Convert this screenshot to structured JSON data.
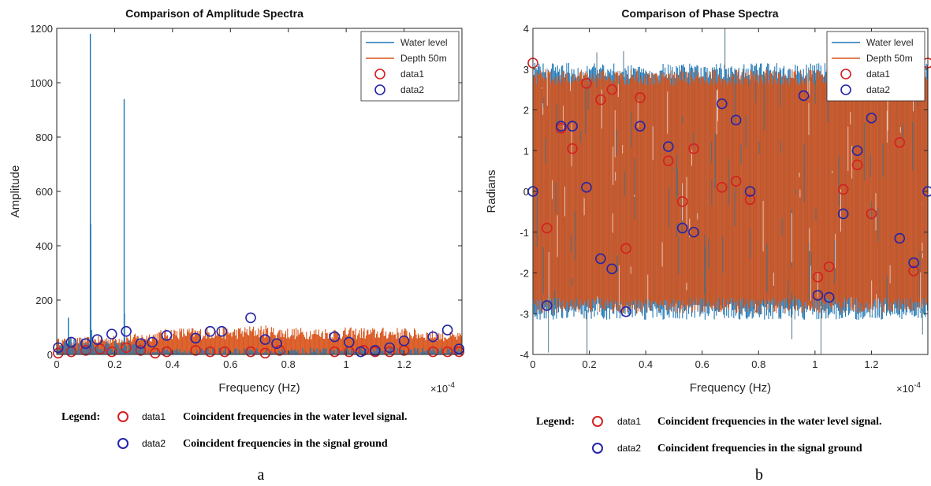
{
  "colors": {
    "water": "#1f77b4",
    "depth": "#d95319",
    "data1": "#d42020",
    "data2": "#2424a8"
  },
  "panel_a": {
    "caption": "a",
    "legend_caption": "Legend:",
    "legend_data1_name": "data1",
    "legend_data1_desc": "Coincident frequencies in the water level signal.",
    "legend_data2_name": "data2",
    "legend_data2_desc": "Coincident frequencies in the signal ground"
  },
  "panel_b": {
    "caption": "b",
    "legend_caption": "Legend:",
    "legend_data1_name": "data1",
    "legend_data1_desc": "Coincident frequencies in the water level signal.",
    "legend_data2_name": "data2",
    "legend_data2_desc": "Coincident frequencies in the signal ground"
  },
  "chart_data": [
    {
      "type": "line",
      "title": "Comparison of Amplitude Spectra",
      "xlabel": "Frequency (Hz)",
      "ylabel": "Amplitude",
      "x_multiplier": "×10-4",
      "xlim": [
        0,
        1.4
      ],
      "ylim": [
        0,
        1200
      ],
      "xticks": [
        0,
        0.2,
        0.4,
        0.6,
        0.8,
        1,
        1.2
      ],
      "xtick_labels": [
        "0",
        "0.2",
        "0.4",
        "0.6",
        "0.8",
        "1",
        "1.2"
      ],
      "yticks": [
        0,
        200,
        400,
        600,
        800,
        1000,
        1200
      ],
      "ytick_labels": [
        "0",
        "200",
        "400",
        "600",
        "800",
        "1000",
        "1200"
      ],
      "legend_position": "top-right",
      "series": [
        {
          "name": "Water level",
          "type": "line",
          "peaks": [
            [
              0.116,
              1180
            ],
            [
              0.117,
              480
            ],
            [
              0.233,
              940
            ],
            [
              0.234,
              150
            ],
            [
              0.04,
              135
            ],
            [
              0.12,
              90
            ]
          ],
          "baseline_range": [
            0,
            40
          ]
        },
        {
          "name": "Depth 50m",
          "type": "line",
          "band": [
            [
              0,
              60
            ],
            [
              0.2,
              70
            ],
            [
              0.3,
              80
            ],
            [
              0.4,
              100
            ],
            [
              0.5,
              100
            ],
            [
              0.6,
              100
            ],
            [
              0.7,
              110
            ],
            [
              0.8,
              100
            ],
            [
              1.0,
              100
            ],
            [
              1.2,
              100
            ],
            [
              1.4,
              80
            ]
          ]
        },
        {
          "name": "data1",
          "type": "scatter",
          "x": [
            0.005,
            0.05,
            0.1,
            0.15,
            0.19,
            0.24,
            0.29,
            0.34,
            0.38,
            0.48,
            0.53,
            0.58,
            0.67,
            0.72,
            0.77,
            0.96,
            1.01,
            1.06,
            1.1,
            1.15,
            1.2,
            1.3,
            1.35,
            1.39
          ],
          "y": [
            5,
            10,
            15,
            20,
            10,
            25,
            15,
            5,
            10,
            15,
            10,
            10,
            10,
            5,
            15,
            10,
            10,
            15,
            10,
            10,
            15,
            10,
            10,
            10
          ]
        },
        {
          "name": "data2",
          "type": "scatter",
          "x": [
            0.005,
            0.05,
            0.1,
            0.14,
            0.19,
            0.24,
            0.29,
            0.33,
            0.38,
            0.48,
            0.53,
            0.57,
            0.67,
            0.72,
            0.76,
            0.96,
            1.01,
            1.05,
            1.1,
            1.15,
            1.2,
            1.3,
            1.35,
            1.39
          ],
          "y": [
            25,
            45,
            40,
            55,
            75,
            85,
            40,
            45,
            70,
            60,
            85,
            85,
            135,
            55,
            40,
            65,
            45,
            10,
            15,
            25,
            50,
            65,
            90,
            20
          ]
        }
      ]
    },
    {
      "type": "line",
      "title": "Comparison of Phase Spectra",
      "xlabel": "Frequency (Hz)",
      "ylabel": "Radians",
      "x_multiplier": "×10-4",
      "xlim": [
        0,
        1.4
      ],
      "ylim": [
        -4,
        4
      ],
      "xticks": [
        0,
        0.2,
        0.4,
        0.6,
        0.8,
        1,
        1.2
      ],
      "xtick_labels": [
        "0",
        "0.2",
        "0.4",
        "0.6",
        "0.8",
        "1",
        "1.2"
      ],
      "yticks": [
        -4,
        -3,
        -2,
        -1,
        0,
        1,
        2,
        3,
        4
      ],
      "ytick_labels": [
        "-4",
        "-3",
        "-2",
        "-1",
        "0",
        "1",
        "2",
        "3",
        "4"
      ],
      "legend_position": "top-right",
      "series": [
        {
          "name": "Water level",
          "type": "line",
          "band": [
            [
              0,
              -3.1
            ],
            [
              1.4,
              3.1
            ]
          ]
        },
        {
          "name": "Depth 50m",
          "type": "line",
          "band": [
            [
              0,
              -3.0
            ],
            [
              1.4,
              3.0
            ]
          ]
        },
        {
          "name": "data1",
          "type": "scatter",
          "x": [
            0.0,
            0.05,
            0.1,
            0.14,
            0.19,
            0.24,
            0.28,
            0.33,
            0.38,
            0.48,
            0.53,
            0.57,
            0.67,
            0.72,
            0.77,
            0.96,
            1.01,
            1.05,
            1.1,
            1.15,
            1.2,
            1.3,
            1.35,
            1.4
          ],
          "y": [
            3.15,
            -0.9,
            1.55,
            1.05,
            2.65,
            2.25,
            2.5,
            -1.4,
            2.3,
            0.75,
            -0.25,
            1.05,
            0.1,
            0.25,
            -0.2,
            2.35,
            -2.1,
            -1.85,
            0.05,
            0.65,
            -0.55,
            1.2,
            -1.95,
            3.15
          ]
        },
        {
          "name": "data2",
          "type": "scatter",
          "x": [
            0.0,
            0.05,
            0.1,
            0.14,
            0.19,
            0.24,
            0.28,
            0.33,
            0.38,
            0.48,
            0.53,
            0.57,
            0.67,
            0.72,
            0.77,
            0.96,
            1.01,
            1.05,
            1.1,
            1.15,
            1.2,
            1.3,
            1.35,
            1.4
          ],
          "y": [
            0.0,
            -2.8,
            1.6,
            1.6,
            0.1,
            -1.65,
            -1.9,
            -2.95,
            1.6,
            1.1,
            -0.9,
            -1.0,
            2.15,
            1.75,
            0.0,
            2.35,
            -2.55,
            -2.6,
            -0.55,
            1.0,
            1.8,
            -1.15,
            -1.75,
            0.0
          ]
        }
      ]
    }
  ]
}
